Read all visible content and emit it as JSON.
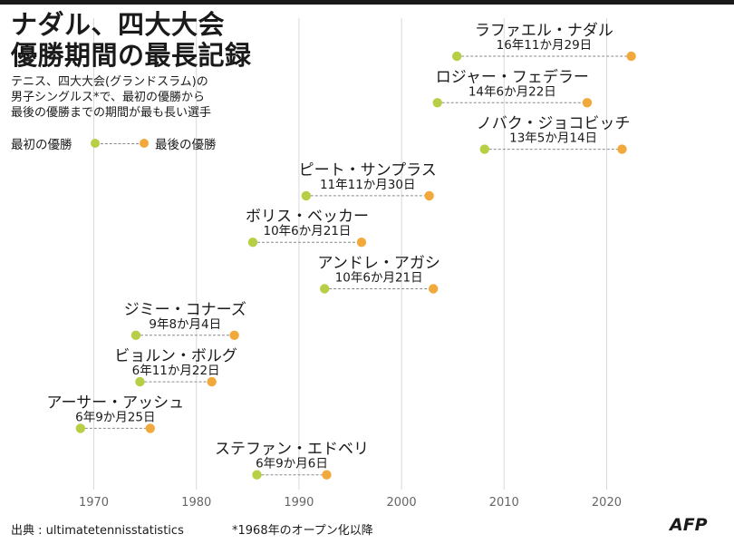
{
  "header": {
    "title_line1": "ナダル、四大大会",
    "title_line2": "優勝期間の最長記録",
    "subtitle_line1": "テニス、四大大会(グランドスラム)の",
    "subtitle_line2": "男子シングルス*で、最初の優勝から",
    "subtitle_line3": "最後の優勝までの期間が最も長い選手"
  },
  "legend": {
    "first": "最初の優勝",
    "last": "最後の優勝"
  },
  "footer": {
    "source": "出典 : ultimatetennisstatistics",
    "note": "*1968年のオープン化以降",
    "logo": "AFP"
  },
  "colors": {
    "first_win": "#b6cf45",
    "last_win": "#f2a93b",
    "grid": "#d9d9d9",
    "text": "#1a1a1a"
  },
  "chart_data": {
    "type": "dumbbell",
    "title": "ナダル、四大大会優勝期間の最長記録",
    "xlabel": "",
    "ylabel": "",
    "xlim": [
      1962,
      2028
    ],
    "xticks": [
      1970,
      1980,
      1990,
      2000,
      2010,
      2020
    ],
    "grid": true,
    "series": [
      {
        "name": "ラファエル・ナダル",
        "duration": "16年11か月29日",
        "first": 2005.4,
        "last": 2022.4
      },
      {
        "name": "ロジャー・フェデラー",
        "duration": "14年6か月22日",
        "first": 2003.5,
        "last": 2018.1
      },
      {
        "name": "ノバク・ジョコビッチ",
        "duration": "13年5か月14日",
        "first": 2008.1,
        "last": 2021.5
      },
      {
        "name": "ピート・サンプラス",
        "duration": "11年11か月30日",
        "first": 1990.7,
        "last": 2002.7
      },
      {
        "name": "ボリス・ベッカー",
        "duration": "10年6か月21日",
        "first": 1985.5,
        "last": 1996.1
      },
      {
        "name": "アンドレ・アガシ",
        "duration": "10年6か月21日",
        "first": 1992.5,
        "last": 2003.1
      },
      {
        "name": "ジミー・コナーズ",
        "duration": "9年8か月4日",
        "first": 1974.1,
        "last": 1983.7
      },
      {
        "name": "ビョルン・ボルグ",
        "duration": "6年11か月22日",
        "first": 1974.5,
        "last": 1981.5
      },
      {
        "name": "アーサー・アッシュ",
        "duration": "6年9か月25日",
        "first": 1968.7,
        "last": 1975.5
      },
      {
        "name": "ステファン・エドベリ",
        "duration": "6年9か月6日",
        "first": 1985.9,
        "last": 1992.7
      }
    ]
  }
}
